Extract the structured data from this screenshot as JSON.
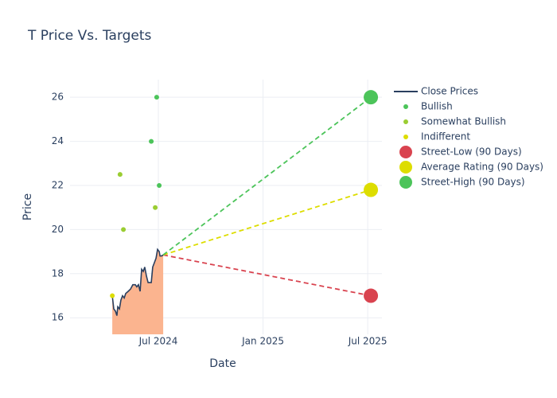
{
  "chart_data": {
    "type": "line",
    "title": "T Price Vs. Targets",
    "x_label": "Date",
    "y_label": "Price",
    "xlim": [
      2024.078,
      2025.568
    ],
    "ylim": [
      15.25,
      26.8
    ],
    "xticks": [
      {
        "value": 2024.5,
        "label": "Jul 2024"
      },
      {
        "value": 2025.0,
        "label": "Jan 2025"
      },
      {
        "value": 2025.5,
        "label": "Jul 2025"
      }
    ],
    "yticks": [
      16,
      18,
      20,
      22,
      24,
      26
    ],
    "grid": true,
    "legend": "right",
    "series": [
      {
        "name": "Close Prices",
        "mode": "lines",
        "color": "#2a3f5f",
        "fill": "#fbb48f",
        "x": [
          2024.28,
          2024.287,
          2024.295,
          2024.302,
          2024.306,
          2024.314,
          2024.321,
          2024.329,
          2024.337,
          2024.344,
          2024.356,
          2024.367,
          2024.378,
          2024.39,
          2024.397,
          2024.405,
          2024.413,
          2024.42,
          2024.428,
          2024.435,
          2024.443,
          2024.451,
          2024.466,
          2024.473,
          2024.481,
          2024.489,
          2024.496,
          2024.504,
          2024.508,
          2024.515,
          2024.523
        ],
        "values": [
          17.0,
          16.4,
          16.3,
          16.1,
          16.5,
          16.4,
          16.8,
          17.0,
          16.9,
          17.1,
          17.2,
          17.3,
          17.5,
          17.5,
          17.4,
          17.5,
          17.2,
          18.2,
          18.1,
          18.3,
          17.9,
          17.6,
          17.6,
          18.3,
          18.5,
          18.7,
          19.1,
          19.0,
          18.8,
          18.8,
          18.85
        ]
      },
      {
        "name": "Bullish",
        "mode": "markers",
        "marker": "small",
        "color": "#4cc45a",
        "x": [
          2024.492,
          2024.466,
          2024.504
        ],
        "values": [
          26,
          24,
          22
        ]
      },
      {
        "name": "Somewhat Bullish",
        "mode": "markers",
        "marker": "small",
        "color": "#9acd32",
        "x": [
          2024.317,
          2024.333,
          2024.485
        ],
        "values": [
          22.5,
          20,
          21
        ]
      },
      {
        "name": "Indifferent",
        "mode": "markers",
        "marker": "small",
        "color": "#dddd00",
        "x": [
          2024.28
        ],
        "values": [
          17
        ]
      },
      {
        "name": "Street-Low (90 Days)",
        "mode": "target",
        "marker": "large",
        "color": "#d9434f",
        "x": [
          2025.515
        ],
        "values": [
          17
        ]
      },
      {
        "name": "Average Rating (90 Days)",
        "mode": "target",
        "marker": "large",
        "color": "#dddd00",
        "x": [
          2025.515
        ],
        "values": [
          21.8
        ]
      },
      {
        "name": "Street-High (90 Days)",
        "mode": "target",
        "marker": "large",
        "color": "#4cc45a",
        "x": [
          2025.515
        ],
        "values": [
          26
        ]
      }
    ]
  }
}
